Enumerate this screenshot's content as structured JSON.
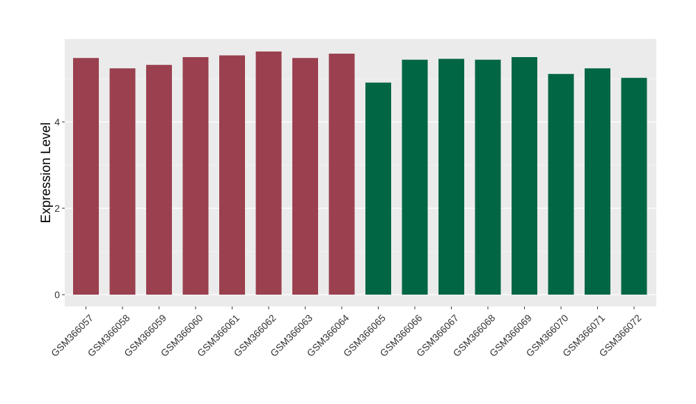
{
  "chart_data": {
    "type": "bar",
    "title": "",
    "xlabel": "",
    "ylabel": "Expression Level",
    "ylim": [
      0,
      5.87
    ],
    "yticks": [
      0,
      2,
      4
    ],
    "grid": true,
    "legend": "none",
    "colors": {
      "group_a": "#9a404e",
      "group_b": "#006644",
      "panel": "#ebebeb",
      "gridline": "#ffffff"
    },
    "categories": [
      "GSM366057",
      "GSM366058",
      "GSM366059",
      "GSM366060",
      "GSM366061",
      "GSM366062",
      "GSM366063",
      "GSM366064",
      "GSM366065",
      "GSM366066",
      "GSM366067",
      "GSM366068",
      "GSM366069",
      "GSM366070",
      "GSM366071",
      "GSM366072"
    ],
    "values": [
      5.48,
      5.24,
      5.32,
      5.5,
      5.54,
      5.63,
      5.48,
      5.58,
      4.91,
      5.44,
      5.46,
      5.44,
      5.5,
      5.11,
      5.24,
      5.02
    ],
    "groups": [
      "a",
      "a",
      "a",
      "a",
      "a",
      "a",
      "a",
      "a",
      "b",
      "b",
      "b",
      "b",
      "b",
      "b",
      "b",
      "b"
    ]
  }
}
